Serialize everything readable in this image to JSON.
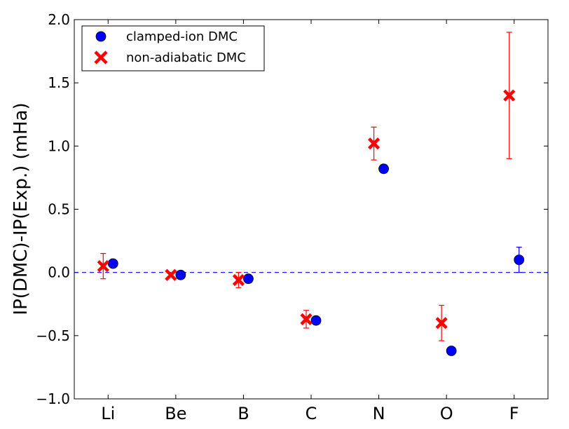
{
  "chart_data": {
    "type": "scatter",
    "categories": [
      "Li",
      "Be",
      "B",
      "C",
      "N",
      "O",
      "F"
    ],
    "ylabel": "IP(DMC)-IP(Exp.) (mHa)",
    "xlabel": "",
    "title": "",
    "ylim": [
      -1.0,
      2.0
    ],
    "yticks": [
      -1.0,
      -0.5,
      0.0,
      0.5,
      1.0,
      1.5,
      2.0
    ],
    "ytick_labels": [
      "−1.0",
      "−0.5",
      "0.0",
      "0.5",
      "1.0",
      "1.5",
      "2.0"
    ],
    "reference_line": {
      "y": 0.0,
      "style": "dashed",
      "color": "#0000ff"
    },
    "grid": false,
    "legend_position": "top-left",
    "series": [
      {
        "name": "clamped-ion DMC",
        "marker": "circle",
        "color": "#0000ff",
        "values": [
          0.07,
          -0.02,
          -0.05,
          -0.38,
          0.82,
          -0.62,
          0.1
        ],
        "errors": [
          0.01,
          0.01,
          0.01,
          0.01,
          0.02,
          0.03,
          0.1
        ]
      },
      {
        "name": "non-adiabatic DMC",
        "marker": "x",
        "color": "#ff0000",
        "values": [
          0.05,
          -0.02,
          -0.06,
          -0.37,
          1.02,
          -0.4,
          1.4
        ],
        "errors": [
          0.1,
          0.01,
          0.06,
          0.07,
          0.13,
          0.14,
          0.5
        ]
      }
    ]
  }
}
